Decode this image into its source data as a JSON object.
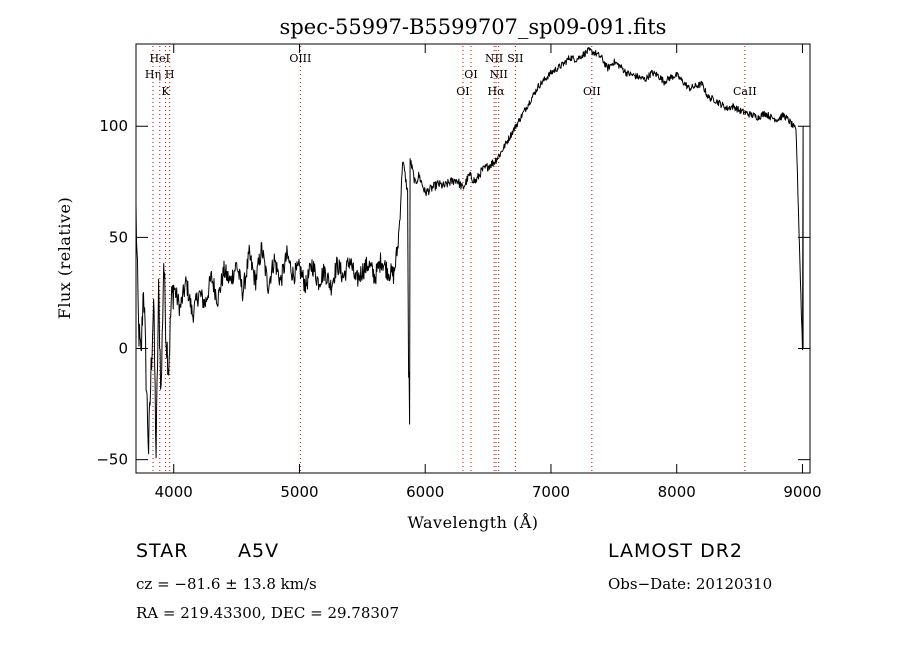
{
  "chart_data": {
    "type": "line",
    "title": "spec-55997-B5599707_sp09-091.fits",
    "xlabel": "Wavelength (Å)",
    "ylabel": "Flux (relative)",
    "xlim": [
      3700,
      9060
    ],
    "ylim": [
      -56,
      137
    ],
    "xticks": [
      4000,
      5000,
      6000,
      7000,
      8000,
      9000
    ],
    "yticks": [
      -50,
      0,
      50,
      100
    ],
    "grid": false,
    "series": [
      {
        "color": "#000000",
        "x": [
          3700,
          3720,
          3740,
          3760,
          3780,
          3800,
          3820,
          3840,
          3860,
          3880,
          3900,
          3920,
          3940,
          3960,
          3980,
          4000,
          4050,
          4100,
          4150,
          4200,
          4250,
          4300,
          4350,
          4400,
          4450,
          4500,
          4550,
          4600,
          4650,
          4700,
          4750,
          4800,
          4850,
          4900,
          4950,
          5000,
          5050,
          5100,
          5150,
          5200,
          5250,
          5300,
          5350,
          5400,
          5450,
          5500,
          5550,
          5600,
          5650,
          5700,
          5750,
          5780,
          5800,
          5820,
          5840,
          5860,
          5870,
          5880,
          5900,
          5920,
          5950,
          6000,
          6050,
          6100,
          6150,
          6200,
          6250,
          6300,
          6350,
          6400,
          6450,
          6500,
          6550,
          6600,
          6650,
          6700,
          6750,
          6800,
          6850,
          6900,
          6950,
          7000,
          7050,
          7100,
          7150,
          7200,
          7250,
          7300,
          7350,
          7400,
          7450,
          7500,
          7550,
          7600,
          7650,
          7700,
          7750,
          7800,
          7850,
          7900,
          7950,
          8000,
          8050,
          8100,
          8150,
          8200,
          8250,
          8300,
          8350,
          8400,
          8450,
          8500,
          8550,
          8600,
          8650,
          8700,
          8750,
          8800,
          8850,
          8900,
          8950,
          9000
        ],
        "y": [
          62,
          10,
          -5,
          30,
          -12,
          -45,
          -10,
          22,
          -48,
          25,
          -20,
          40,
          5,
          -8,
          20,
          28,
          18,
          30,
          15,
          25,
          20,
          32,
          22,
          35,
          30,
          38,
          25,
          42,
          30,
          45,
          28,
          40,
          30,
          42,
          33,
          36,
          28,
          38,
          30,
          35,
          28,
          38,
          32,
          40,
          30,
          35,
          38,
          32,
          40,
          35,
          33,
          45,
          60,
          85,
          78,
          70,
          -34,
          85,
          80,
          74,
          78,
          70,
          72,
          74,
          73,
          75,
          76,
          72,
          78,
          75,
          80,
          82,
          84,
          88,
          93,
          98,
          103,
          108,
          113,
          118,
          121,
          124,
          126,
          128,
          131,
          130,
          132,
          134,
          133,
          131,
          126,
          129,
          127,
          124,
          123,
          122,
          121,
          124,
          123,
          120,
          122,
          123,
          120,
          117,
          118,
          119,
          113,
          112,
          110,
          108,
          109,
          107,
          106,
          105,
          104,
          106,
          104,
          103,
          105,
          102,
          98,
          0
        ],
        "spike": {
          "x": 5876,
          "y": -34
        }
      }
    ],
    "line_markers": [
      {
        "x": 3835,
        "label": "Hη",
        "row": 2
      },
      {
        "x": 3889,
        "label": "HeI",
        "row": 1
      },
      {
        "x": 3934,
        "label": "K",
        "row": 3
      },
      {
        "x": 3968,
        "label": "H",
        "row": 2
      },
      {
        "x": 5007,
        "label": "OIII",
        "row": 1
      },
      {
        "x": 6300,
        "label": "OI",
        "row": 3
      },
      {
        "x": 6364,
        "label": "OI",
        "row": 2
      },
      {
        "x": 6548,
        "label": "NII",
        "row": 1
      },
      {
        "x": 6563,
        "label": "Hα",
        "row": 3
      },
      {
        "x": 6584,
        "label": "NII",
        "row": 2
      },
      {
        "x": 6717,
        "label": "SII",
        "row": 1
      },
      {
        "x": 7325,
        "label": "OII",
        "row": 3
      },
      {
        "x": 8542,
        "label": "CaII",
        "row": 3
      }
    ]
  },
  "footer": {
    "object_type": "STAR",
    "subclass": "A5V",
    "survey": "LAMOST DR2",
    "redshift": "cz = −81.6 ± 13.8 km/s",
    "obs_date": "Obs−Date: 20120310",
    "coords": "RA = 219.43300, DEC =  29.78307"
  }
}
